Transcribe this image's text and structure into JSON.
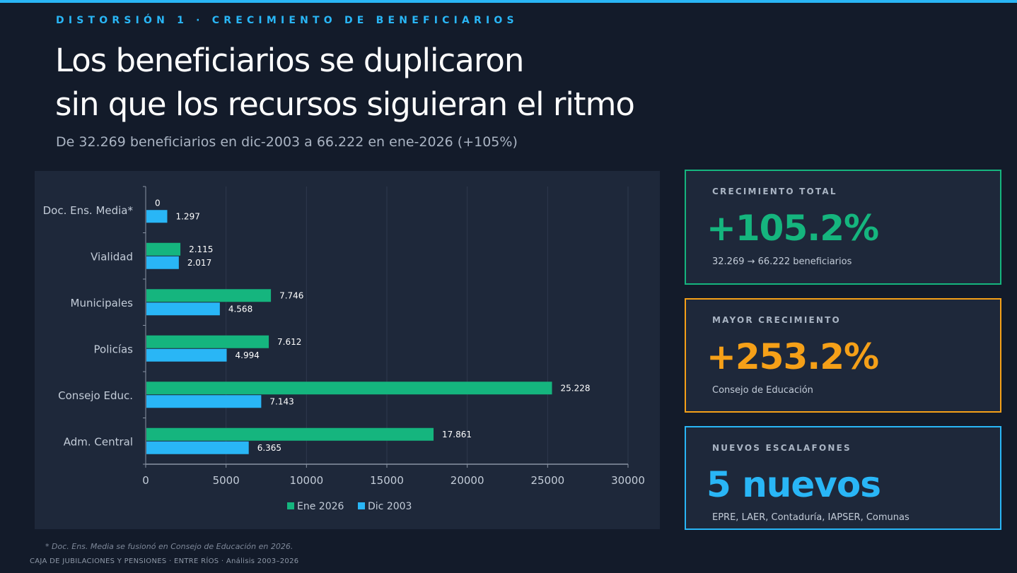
{
  "header": {
    "kicker": "DISTORSIÓN 1  ·  CRECIMIENTO DE BENEFICIARIOS",
    "title_line1": "Los beneficiarios se duplicaron",
    "title_line2": "sin que los recursos siguieran el ritmo",
    "subtitle": "De 32.269 beneficiarios en dic-2003 a 66.222 en ene-2026 (+105%)"
  },
  "chart_data": {
    "type": "bar",
    "orientation": "horizontal",
    "categories": [
      "Doc. Ens. Media*",
      "Vialidad",
      "Municipales",
      "Policías",
      "Consejo Educ.",
      "Adm. Central"
    ],
    "series": [
      {
        "name": "Ene 2026",
        "color": "#15b57e",
        "values": [
          0,
          2115,
          7746,
          7612,
          25228,
          17861
        ],
        "labels": [
          "0",
          "2.115",
          "7.746",
          "7.612",
          "25.228",
          "17.861"
        ]
      },
      {
        "name": "Dic 2003",
        "color": "#29b6f6",
        "values": [
          1297,
          2017,
          4568,
          4994,
          7143,
          6365
        ],
        "labels": [
          "1.297",
          "2.017",
          "4.568",
          "4.994",
          "7.143",
          "6.365"
        ]
      }
    ],
    "xlim": [
      0,
      30000
    ],
    "xticks": [
      0,
      5000,
      10000,
      15000,
      20000,
      25000,
      30000
    ],
    "xtick_labels": [
      "0",
      "5000",
      "10000",
      "15000",
      "20000",
      "25000",
      "30000"
    ],
    "grid": true,
    "legend": "bottom"
  },
  "cards": [
    {
      "label": "CRECIMIENTO TOTAL",
      "value": "+105.2%",
      "detail": "32.269 → 66.222 beneficiarios",
      "color": "#15b57e"
    },
    {
      "label": "MAYOR CRECIMIENTO",
      "value": "+253.2%",
      "detail": "Consejo de Educación",
      "color": "#f5a018"
    },
    {
      "label": "NUEVOS ESCALAFONES",
      "value": "5 nuevos",
      "detail": "EPRE, LAER, Contaduría, IAPSER, Comunas",
      "color": "#29b6f6"
    }
  ],
  "footnote": "* Doc. Ens. Media se fusionó en Consejo de Educación en 2026.",
  "footer": "CAJA DE JUBILACIONES Y PENSIONES  ·  ENTRE RÍOS  ·  Análisis 2003–2026"
}
